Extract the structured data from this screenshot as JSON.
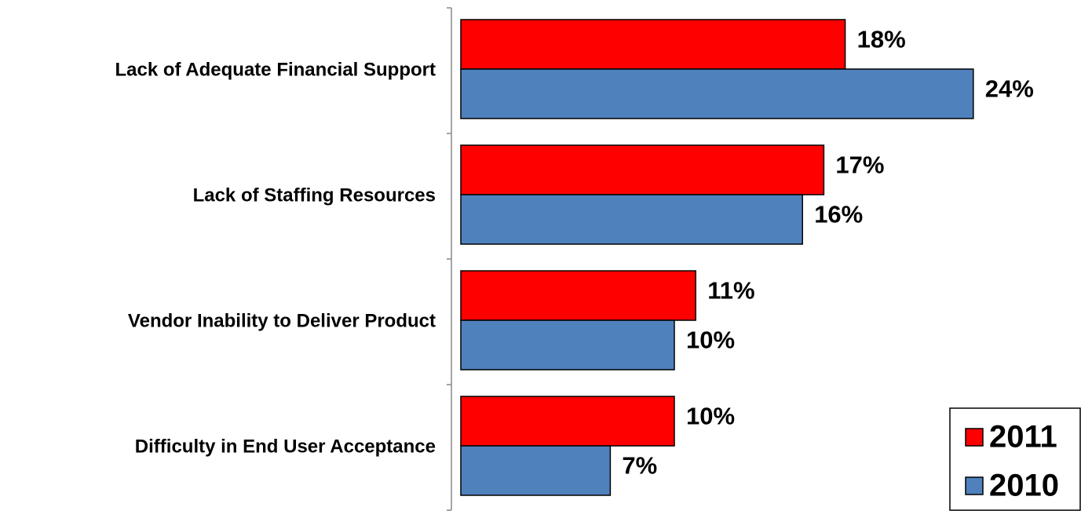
{
  "chart_data": {
    "type": "bar",
    "orientation": "horizontal",
    "categories": [
      "Lack of Adequate Financial Support",
      "Lack of Staffing Resources",
      "Vendor Inability to Deliver Product",
      "Difficulty in End User Acceptance"
    ],
    "series": [
      {
        "name": "2011",
        "color": "#ff0000",
        "values": [
          18,
          17,
          11,
          10
        ],
        "value_labels": [
          "18%",
          "17%",
          "11%",
          "10%"
        ]
      },
      {
        "name": "2010",
        "color": "#4f81bd",
        "values": [
          24,
          16,
          10,
          7
        ],
        "value_labels": [
          "24%",
          "16%",
          "10%",
          "7%"
        ]
      }
    ],
    "legend": "lower right"
  }
}
